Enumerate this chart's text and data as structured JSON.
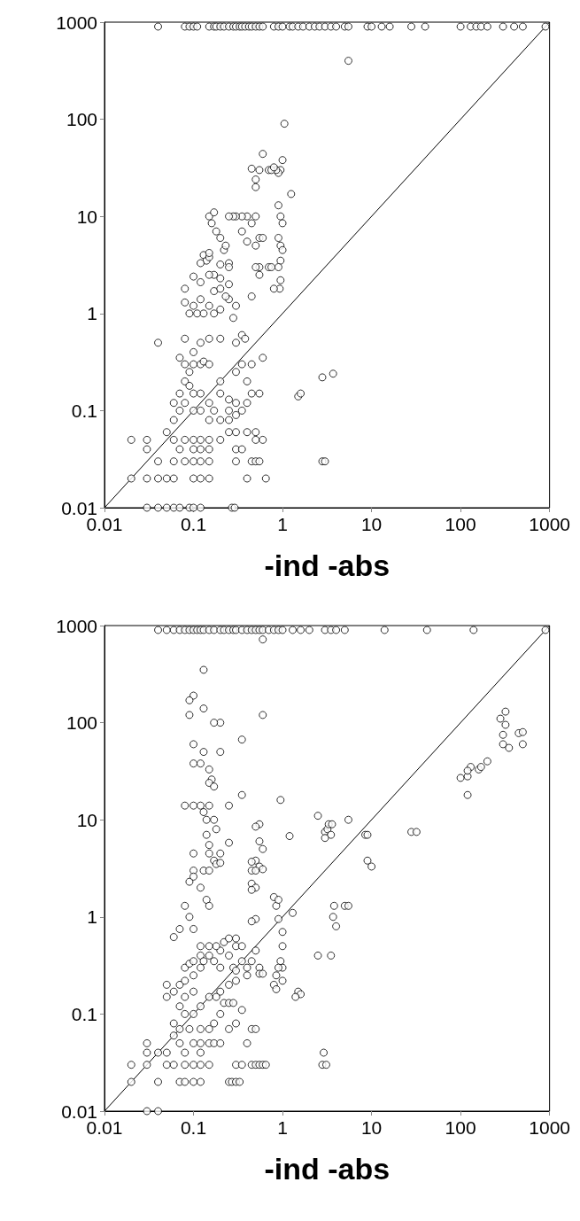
{
  "chart_data": [
    {
      "type": "scatter",
      "xlabel": "-ind -abs",
      "log": "xy",
      "grid": false,
      "marker": "circle",
      "xlim": [
        0.01,
        1000
      ],
      "ylim": [
        0.01,
        1000
      ],
      "xticks": [
        0.01,
        0.1,
        1,
        10,
        100,
        1000
      ],
      "yticks": [
        0.01,
        0.1,
        1,
        10,
        100,
        1000
      ],
      "series": [
        {
          "type": "line",
          "color": "#000000",
          "marker": "none",
          "line_style": "solid",
          "x": [
            0.01,
            1000
          ],
          "values": [
            0.01,
            1000
          ]
        },
        {
          "type": "scatter",
          "color": "#000000",
          "x": [
            0.04,
            0.08,
            0.09,
            0.1,
            0.11,
            0.15,
            0.17,
            0.18,
            0.2,
            0.22,
            0.25,
            0.28,
            0.3,
            0.33,
            0.35,
            0.38,
            0.42,
            0.45,
            0.5,
            0.55,
            0.6,
            0.8,
            0.9,
            1.0,
            1.2,
            1.3,
            1.5,
            1.7,
            2,
            2.3,
            2.6,
            3,
            3.5,
            4,
            5,
            5.5,
            9,
            10,
            13,
            16,
            28,
            40,
            100,
            130,
            150,
            170,
            200,
            300,
            400,
            500,
            900,
            5.5,
            1.05,
            0.95,
            0.9,
            0.85,
            1.0,
            1.25,
            0.9,
            0.95,
            1.0,
            0.9,
            0.95,
            1.0,
            0.95,
            0.9,
            0.95,
            0.93,
            0.6,
            0.55,
            0.5,
            0.5,
            0.7,
            0.75,
            0.8,
            0.45,
            0.4,
            0.35,
            0.3,
            0.28,
            0.25,
            0.45,
            0.5,
            0.55,
            0.6,
            0.5,
            0.4,
            0.35,
            0.55,
            0.5,
            0.7,
            0.75,
            0.55,
            0.8,
            0.45,
            0.15,
            0.17,
            0.16,
            0.18,
            0.2,
            0.22,
            0.23,
            0.25,
            0.2,
            0.25,
            0.13,
            0.14,
            0.15,
            0.12,
            0.15,
            0.17,
            0.2,
            0.25,
            0.1,
            0.12,
            0.15,
            0.17,
            0.2,
            0.25,
            0.23,
            0.08,
            0.08,
            0.09,
            0.1,
            0.11,
            0.12,
            0.13,
            0.15,
            0.17,
            0.2,
            0.28,
            0.3,
            0.35,
            0.38,
            0.3,
            0.2,
            0.15,
            0.12,
            0.08,
            0.04,
            0.1,
            0.07,
            0.08,
            0.09,
            0.1,
            0.12,
            0.13,
            0.15,
            0.08,
            0.07,
            0.08,
            0.09,
            0.1,
            0.12,
            0.1,
            0.12,
            0.07,
            0.06,
            0.06,
            0.15,
            0.17,
            0.2,
            0.25,
            0.3,
            0.25,
            0.3,
            0.35,
            0.4,
            0.45,
            0.4,
            0.3,
            0.35,
            0.45,
            0.6,
            0.55,
            0.2,
            0.15,
            0.2,
            0.25,
            0.3,
            0.4,
            0.5,
            0.5,
            0.6,
            0.05,
            0.06,
            0.08,
            0.1,
            0.12,
            0.15,
            0.2,
            0.25,
            0.07,
            0.1,
            0.12,
            0.15,
            0.3,
            0.35,
            0.04,
            0.06,
            0.08,
            0.1,
            0.12,
            0.15,
            0.3,
            0.45,
            0.5,
            0.55,
            0.02,
            0.03,
            0.03,
            0.02,
            0.03,
            0.04,
            0.05,
            0.06,
            0.1,
            0.12,
            0.15,
            0.4,
            0.65,
            0.03,
            0.04,
            0.05,
            0.06,
            0.07,
            0.09,
            0.1,
            0.12,
            0.27,
            0.29,
            1.5,
            1.6,
            2.8,
            3.7,
            2.8,
            3.0
          ],
          "values": [
            900,
            900,
            900,
            900,
            900,
            900,
            900,
            900,
            900,
            900,
            900,
            900,
            900,
            900,
            900,
            900,
            900,
            900,
            900,
            900,
            900,
            900,
            900,
            900,
            900,
            900,
            900,
            900,
            900,
            900,
            900,
            900,
            900,
            900,
            900,
            900,
            900,
            900,
            900,
            900,
            900,
            900,
            900,
            900,
            900,
            900,
            900,
            900,
            900,
            900,
            900,
            400,
            90,
            30,
            28,
            30,
            38,
            17,
            13,
            10,
            8.5,
            6,
            5,
            4.5,
            3.5,
            3,
            2.2,
            1.8,
            44,
            30,
            20,
            24,
            30,
            30,
            32,
            31,
            10,
            10,
            10,
            10,
            10,
            8.5,
            10,
            6,
            6,
            5,
            5.5,
            7,
            3,
            3,
            3,
            3,
            2.5,
            1.8,
            1.5,
            10,
            11,
            8.5,
            7,
            6,
            4.5,
            5,
            3.3,
            3.2,
            3,
            4,
            3.5,
            3.8,
            3.3,
            4.2,
            2.5,
            2.3,
            2,
            2.4,
            2.1,
            2.5,
            1.7,
            1.8,
            1.4,
            1.5,
            1.8,
            1.3,
            1.0,
            1.2,
            1.0,
            1.4,
            1.0,
            1.2,
            1.0,
            1.1,
            0.9,
            1.2,
            0.6,
            0.55,
            0.5,
            0.55,
            0.55,
            0.5,
            0.55,
            0.5,
            0.3,
            0.35,
            0.3,
            0.25,
            0.4,
            0.3,
            0.32,
            0.3,
            0.2,
            0.15,
            0.12,
            0.18,
            0.15,
            0.15,
            0.1,
            0.1,
            0.1,
            0.12,
            0.08,
            0.12,
            0.1,
            0.15,
            0.13,
            0.12,
            0.1,
            0.09,
            0.1,
            0.12,
            0.15,
            0.2,
            0.25,
            0.3,
            0.3,
            0.35,
            0.15,
            0.2,
            0.08,
            0.08,
            0.08,
            0.06,
            0.06,
            0.06,
            0.05,
            0.05,
            0.06,
            0.05,
            0.05,
            0.05,
            0.05,
            0.05,
            0.05,
            0.06,
            0.04,
            0.04,
            0.04,
            0.04,
            0.04,
            0.04,
            0.03,
            0.03,
            0.03,
            0.03,
            0.03,
            0.03,
            0.03,
            0.03,
            0.03,
            0.03,
            0.05,
            0.05,
            0.04,
            0.02,
            0.02,
            0.02,
            0.02,
            0.02,
            0.02,
            0.02,
            0.02,
            0.02,
            0.02,
            0.01,
            0.01,
            0.01,
            0.01,
            0.01,
            0.01,
            0.01,
            0.01,
            0.01,
            0.01,
            0.14,
            0.15,
            0.22,
            0.24,
            0.03,
            0.03
          ]
        }
      ]
    },
    {
      "type": "scatter",
      "xlabel": "-ind -abs",
      "log": "xy",
      "grid": false,
      "marker": "circle",
      "xlim": [
        0.01,
        1000
      ],
      "ylim": [
        0.01,
        1000
      ],
      "xticks": [
        0.01,
        0.1,
        1,
        10,
        100,
        1000
      ],
      "yticks": [
        0.01,
        0.1,
        1,
        10,
        100,
        1000
      ],
      "series": [
        {
          "type": "line",
          "color": "#000000",
          "marker": "none",
          "line_style": "solid",
          "x": [
            0.01,
            1000
          ],
          "values": [
            0.01,
            1000
          ]
        },
        {
          "type": "scatter",
          "color": "#000000",
          "x": [
            0.04,
            0.05,
            0.06,
            0.07,
            0.08,
            0.09,
            0.1,
            0.11,
            0.12,
            0.13,
            0.15,
            0.17,
            0.2,
            0.22,
            0.25,
            0.28,
            0.3,
            0.35,
            0.4,
            0.45,
            0.5,
            0.55,
            0.6,
            0.7,
            0.8,
            0.9,
            1.0,
            1.3,
            1.6,
            2.0,
            3,
            3.5,
            4,
            5,
            14,
            42,
            140,
            900,
            0.6,
            0.1,
            0.09,
            0.09,
            0.13,
            0.13,
            0.2,
            0.17,
            0.6,
            0.1,
            0.13,
            0.2,
            0.1,
            0.12,
            0.15,
            0.16,
            0.15,
            0.17,
            0.12,
            0.1,
            0.08,
            0.15,
            0.25,
            0.35,
            0.35,
            0.13,
            0.14,
            0.17,
            0.18,
            0.14,
            0.15,
            0.15,
            0.2,
            0.25,
            0.1,
            0.1,
            0.13,
            0.15,
            0.17,
            0.18,
            0.2,
            0.12,
            0.09,
            0.1,
            0.14,
            0.15,
            0.08,
            0.09,
            0.1,
            0.07,
            0.06,
            0.95,
            0.55,
            0.5,
            0.55,
            0.6,
            0.5,
            0.55,
            0.45,
            0.5,
            0.6,
            0.45,
            0.45,
            0.5,
            0.45,
            0.5,
            0.45,
            1.2,
            2.5,
            3,
            3.2,
            3.3,
            3.6,
            3.5,
            3.0,
            5.5,
            8.5,
            9,
            9,
            10,
            3.8,
            3.7,
            4,
            5,
            5.5,
            3.5,
            2.5,
            1.3,
            0.8,
            0.85,
            0.9,
            0.9,
            1.0,
            1.0,
            0.95,
            1.0,
            0.9,
            0.85,
            0.8,
            0.85,
            1.0,
            1.5,
            1.6,
            1.4,
            2.8,
            3.1,
            2.9,
            28,
            32,
            100,
            120,
            120,
            130,
            120,
            160,
            170,
            200,
            280,
            320,
            320,
            300,
            300,
            350,
            450,
            500,
            500,
            0.05,
            0.05,
            0.06,
            0.07,
            0.08,
            0.08,
            0.09,
            0.1,
            0.1,
            0.12,
            0.12,
            0.13,
            0.15,
            0.17,
            0.2,
            0.2,
            0.22,
            0.25,
            0.3,
            0.3,
            0.35,
            0.25,
            0.18,
            0.15,
            0.12,
            0.28,
            0.35,
            0.4,
            0.45,
            0.5,
            0.55,
            0.55,
            0.6,
            0.4,
            0.3,
            0.3,
            0.25,
            0.2,
            0.18,
            0.15,
            0.12,
            0.1,
            0.08,
            0.07,
            0.08,
            0.1,
            0.06,
            0.06,
            0.07,
            0.09,
            0.12,
            0.15,
            0.17,
            0.2,
            0.22,
            0.25,
            0.28,
            0.3,
            0.25,
            0.35,
            0.45,
            0.5,
            0.4,
            0.07,
            0.1,
            0.12,
            0.15,
            0.17,
            0.2,
            0.05,
            0.08,
            0.12,
            0.03,
            0.03,
            0.04,
            0.02,
            0.03,
            0.05,
            0.06,
            0.08,
            0.1,
            0.12,
            0.15,
            0.3,
            0.35,
            0.45,
            0.5,
            0.55,
            0.6,
            0.65,
            0.02,
            0.04,
            0.07,
            0.08,
            0.1,
            0.12,
            0.25,
            0.27,
            0.3,
            0.33,
            0.03,
            0.04
          ],
          "values": [
            900,
            900,
            900,
            900,
            900,
            900,
            900,
            900,
            900,
            900,
            900,
            900,
            900,
            900,
            900,
            900,
            900,
            900,
            900,
            900,
            900,
            900,
            900,
            900,
            900,
            900,
            900,
            900,
            900,
            900,
            900,
            900,
            900,
            900,
            900,
            900,
            900,
            900,
            720,
            190,
            170,
            120,
            350,
            140,
            100,
            100,
            120,
            60,
            50,
            50,
            38,
            38,
            33,
            26,
            24,
            22,
            14,
            14,
            14,
            14,
            14,
            67,
            18,
            12,
            10,
            10,
            8,
            7,
            5.5,
            4.5,
            4.5,
            5.8,
            4.5,
            3,
            3,
            3,
            3.8,
            3.5,
            3.6,
            2,
            2.3,
            2.6,
            1.5,
            1.3,
            1.3,
            1.0,
            0.75,
            0.75,
            0.62,
            16,
            9,
            8.5,
            6,
            5,
            3.8,
            3.3,
            3,
            3,
            3.1,
            3.7,
            2.2,
            2.0,
            1.9,
            0.95,
            0.9,
            6.8,
            11,
            7.5,
            8,
            9,
            9,
            7,
            6.5,
            10,
            7,
            7,
            3.8,
            3.3,
            1.3,
            1.0,
            0.8,
            1.3,
            1.3,
            0.4,
            0.4,
            1.1,
            1.6,
            1.3,
            1.5,
            0.95,
            0.7,
            0.5,
            0.35,
            0.3,
            0.3,
            0.25,
            0.2,
            0.18,
            0.22,
            0.17,
            0.16,
            0.15,
            0.03,
            0.03,
            0.04,
            7.5,
            7.5,
            27,
            28,
            18,
            35,
            32,
            33,
            35,
            40,
            110,
            130,
            95,
            75,
            60,
            55,
            78,
            80,
            60,
            0.2,
            0.15,
            0.17,
            0.2,
            0.22,
            0.3,
            0.33,
            0.35,
            0.25,
            0.3,
            0.4,
            0.35,
            0.4,
            0.35,
            0.3,
            0.45,
            0.55,
            0.4,
            0.5,
            0.6,
            0.5,
            0.6,
            0.5,
            0.5,
            0.5,
            0.3,
            0.35,
            0.3,
            0.35,
            0.45,
            0.3,
            0.26,
            0.26,
            0.25,
            0.22,
            0.28,
            0.2,
            0.17,
            0.15,
            0.15,
            0.12,
            0.1,
            0.1,
            0.12,
            0.15,
            0.17,
            0.08,
            0.06,
            0.07,
            0.07,
            0.07,
            0.07,
            0.08,
            0.1,
            0.13,
            0.13,
            0.13,
            0.08,
            0.07,
            0.11,
            0.07,
            0.07,
            0.05,
            0.05,
            0.05,
            0.05,
            0.05,
            0.05,
            0.05,
            0.04,
            0.04,
            0.04,
            0.05,
            0.04,
            0.04,
            0.03,
            0.03,
            0.03,
            0.03,
            0.03,
            0.03,
            0.03,
            0.03,
            0.03,
            0.03,
            0.03,
            0.03,
            0.03,
            0.03,
            0.03,
            0.02,
            0.02,
            0.02,
            0.02,
            0.02,
            0.02,
            0.02,
            0.02,
            0.02,
            0.02,
            0.01,
            0.01
          ]
        }
      ]
    }
  ]
}
